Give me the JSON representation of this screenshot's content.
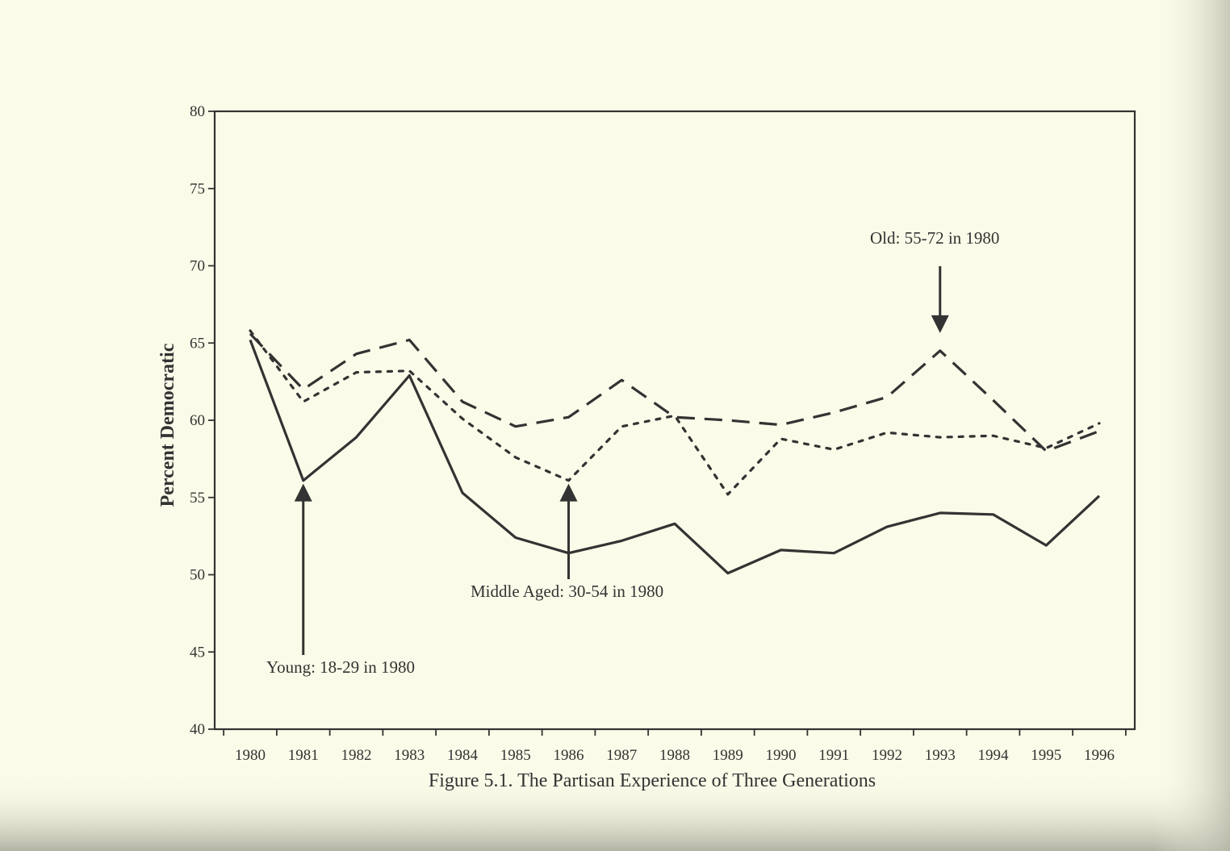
{
  "chart_data": {
    "type": "line",
    "title": "",
    "caption": "Figure 5.1. The Partisan Experience of Three Generations",
    "xlabel": "",
    "ylabel": "Percent Democratic",
    "ylim": [
      40,
      80
    ],
    "yticks": [
      "40",
      "45",
      "50",
      "55",
      "60",
      "65",
      "70",
      "75",
      "80"
    ],
    "x": [
      "1980",
      "1981",
      "1982",
      "1983",
      "1984",
      "1985",
      "1986",
      "1987",
      "1988",
      "1989",
      "1990",
      "1991",
      "1992",
      "1993",
      "1994",
      "1995",
      "1996"
    ],
    "grid": false,
    "legend": "none",
    "series": [
      {
        "style": "solid",
        "values": [
          65.2,
          56.1,
          58.9,
          62.9,
          55.3,
          52.4,
          51.4,
          52.2,
          53.3,
          50.1,
          51.6,
          51.4,
          53.1,
          54.0,
          53.9,
          51.9,
          55.1
        ]
      },
      {
        "style": "dotted",
        "values": [
          65.8,
          61.2,
          63.1,
          63.2,
          60.1,
          57.6,
          56.1,
          59.6,
          60.3,
          55.2,
          58.8,
          58.1,
          59.2,
          58.9,
          59.0,
          58.2,
          59.8
        ]
      },
      {
        "style": "dashed",
        "values": [
          65.6,
          62.0,
          64.3,
          65.2,
          61.2,
          59.6,
          60.2,
          62.6,
          60.2,
          60.0,
          59.7,
          60.5,
          61.5,
          64.5,
          61.3,
          58.0,
          59.3
        ]
      }
    ],
    "annotations": [
      {
        "text": "Young: 18-29 in 1980",
        "arrow_to_x": "1981",
        "arrow_to_y": 56.1,
        "arrow_direction": "up"
      },
      {
        "text": "Middle Aged: 30-54 in 1980",
        "arrow_to_x": "1986",
        "arrow_to_y": 56.1,
        "arrow_direction": "up"
      },
      {
        "text": "Old: 55-72 in 1980",
        "arrow_to_x": "1993",
        "arrow_to_y": 64.5,
        "arrow_direction": "down"
      }
    ]
  },
  "colors": {
    "paper": "#fbfbe9",
    "ink": "#333333"
  }
}
